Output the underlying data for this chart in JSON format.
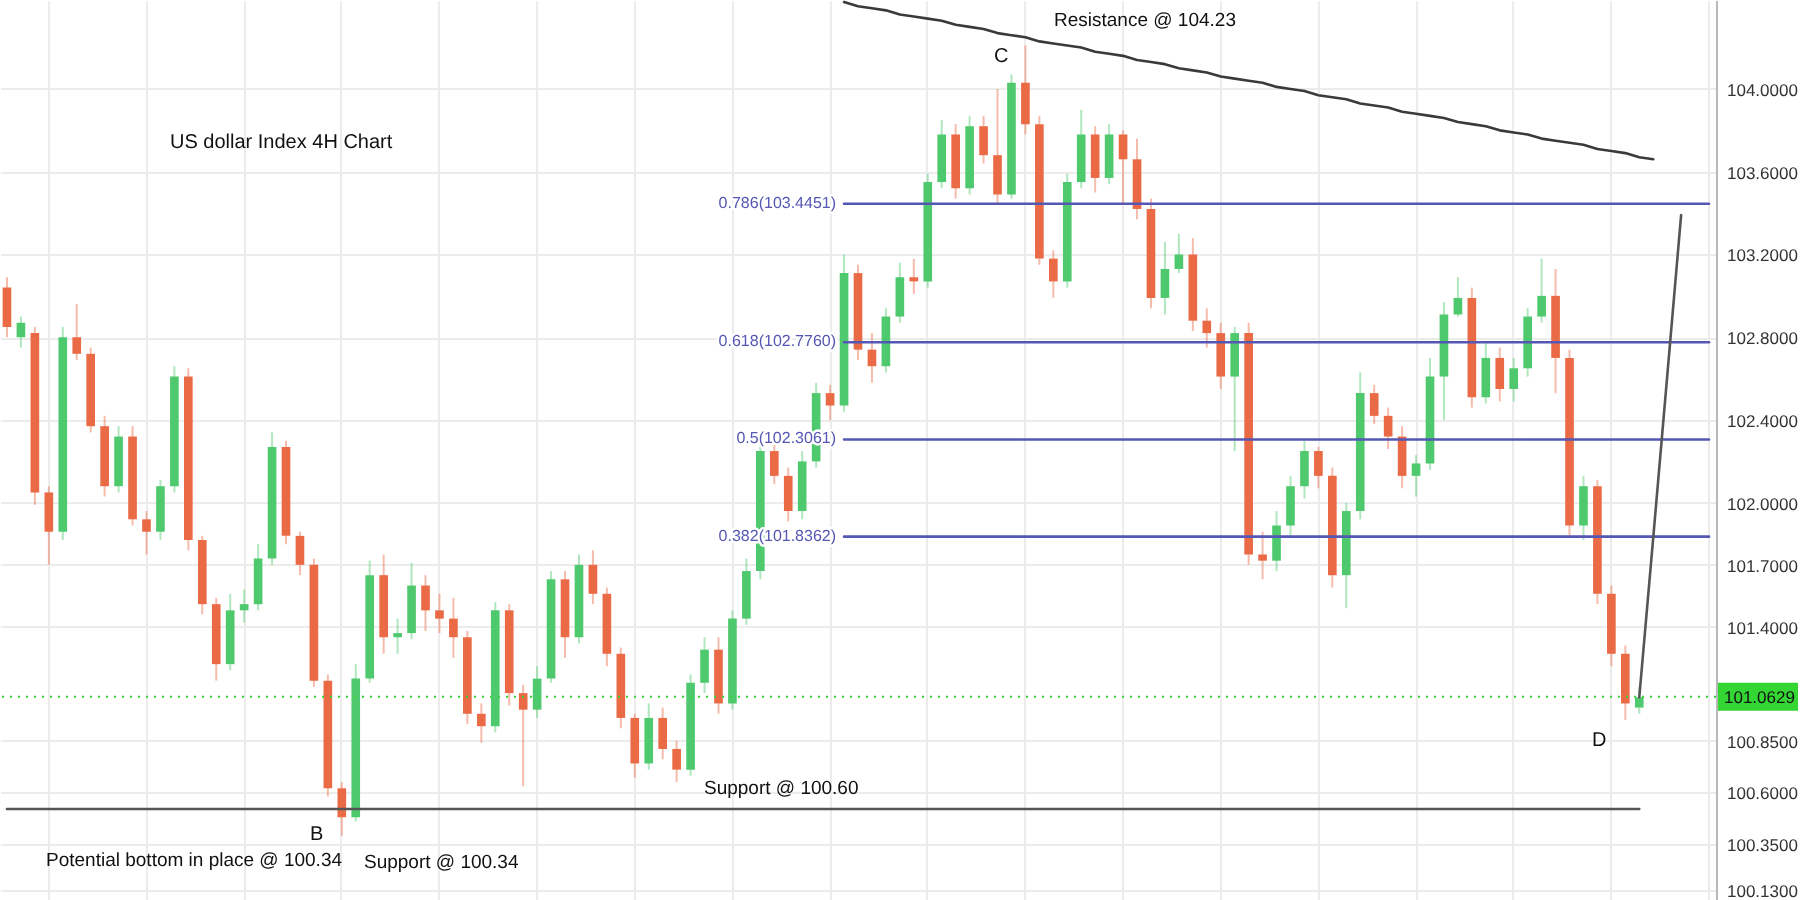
{
  "chart_data": {
    "type": "candlestick",
    "title": "US dollar Index 4H Chart",
    "categories": [
      null,
      null,
      null,
      null,
      null,
      null,
      null,
      null,
      null,
      null,
      null,
      null,
      null,
      null,
      null,
      null,
      null,
      null,
      null,
      null,
      null,
      null,
      null,
      null,
      null,
      null,
      null,
      null,
      null,
      null,
      null,
      null,
      null,
      null,
      null,
      null,
      null,
      null,
      null,
      null,
      null,
      null,
      null,
      null,
      null,
      null,
      null,
      null,
      null,
      null,
      null,
      null,
      null,
      null,
      null,
      null,
      null,
      null,
      null,
      null,
      null,
      null,
      null,
      null,
      null,
      null,
      null,
      null,
      null,
      null,
      null,
      null,
      null,
      null,
      null,
      null,
      null,
      null,
      null,
      null,
      null,
      null,
      null,
      null,
      null,
      null,
      null,
      null,
      null,
      null,
      null,
      null,
      null,
      null,
      null,
      null,
      null,
      null,
      null,
      null,
      null,
      null,
      null,
      null,
      null,
      null,
      null,
      null,
      null,
      null,
      null,
      null,
      null,
      null,
      null,
      null,
      null,
      null,
      null,
      null,
      null,
      null,
      null
    ],
    "ohlc": [
      [
        103.04,
        103.09,
        102.8,
        102.85
      ],
      [
        102.8,
        102.9,
        102.75,
        102.87
      ],
      [
        102.82,
        102.85,
        101.99,
        102.05
      ],
      [
        102.05,
        102.08,
        101.7,
        101.86
      ],
      [
        101.86,
        102.85,
        101.82,
        102.8
      ],
      [
        102.8,
        102.96,
        102.69,
        102.72
      ],
      [
        102.72,
        102.75,
        102.34,
        102.37
      ],
      [
        102.37,
        102.42,
        102.03,
        102.08
      ],
      [
        102.08,
        102.37,
        102.05,
        102.32
      ],
      [
        102.32,
        102.37,
        101.89,
        101.92
      ],
      [
        101.92,
        101.96,
        101.75,
        101.86
      ],
      [
        101.86,
        102.11,
        101.82,
        102.08
      ],
      [
        102.08,
        102.66,
        102.05,
        102.61
      ],
      [
        102.61,
        102.65,
        101.77,
        101.82
      ],
      [
        101.82,
        101.84,
        101.46,
        101.51
      ],
      [
        101.51,
        101.54,
        101.14,
        101.22
      ],
      [
        101.22,
        101.56,
        101.19,
        101.48
      ],
      [
        101.48,
        101.58,
        101.42,
        101.51
      ],
      [
        101.51,
        101.8,
        101.48,
        101.73
      ],
      [
        101.73,
        102.34,
        101.7,
        102.27
      ],
      [
        102.27,
        102.3,
        101.8,
        101.84
      ],
      [
        101.84,
        101.86,
        101.65,
        101.7
      ],
      [
        101.7,
        101.73,
        101.11,
        101.14
      ],
      [
        101.14,
        101.17,
        100.58,
        100.62
      ],
      [
        100.62,
        100.65,
        100.39,
        100.48
      ],
      [
        100.48,
        101.22,
        100.46,
        101.15
      ],
      [
        101.15,
        101.72,
        101.13,
        101.65
      ],
      [
        101.65,
        101.75,
        101.27,
        101.35
      ],
      [
        101.35,
        101.44,
        101.27,
        101.37
      ],
      [
        101.37,
        101.71,
        101.34,
        101.6
      ],
      [
        101.6,
        101.65,
        101.38,
        101.48
      ],
      [
        101.48,
        101.56,
        101.37,
        101.44
      ],
      [
        101.44,
        101.54,
        101.25,
        101.35
      ],
      [
        101.35,
        101.38,
        100.93,
        100.98
      ],
      [
        100.98,
        101.03,
        100.84,
        100.92
      ],
      [
        100.92,
        101.52,
        100.89,
        101.48
      ],
      [
        101.48,
        101.51,
        101.02,
        101.08
      ],
      [
        101.08,
        101.12,
        100.63,
        101.0
      ],
      [
        101.0,
        101.21,
        100.96,
        101.15
      ],
      [
        101.15,
        101.67,
        101.13,
        101.63
      ],
      [
        101.63,
        101.67,
        101.25,
        101.35
      ],
      [
        101.35,
        101.75,
        101.32,
        101.7
      ],
      [
        101.7,
        101.77,
        101.51,
        101.56
      ],
      [
        101.56,
        101.59,
        101.21,
        101.27
      ],
      [
        101.27,
        101.3,
        100.91,
        100.96
      ],
      [
        100.96,
        100.98,
        100.67,
        100.74
      ],
      [
        100.74,
        101.03,
        100.71,
        100.96
      ],
      [
        100.96,
        101.01,
        100.76,
        100.81
      ],
      [
        100.81,
        100.85,
        100.65,
        100.71
      ],
      [
        100.71,
        101.17,
        100.68,
        101.13
      ],
      [
        101.13,
        101.35,
        101.08,
        101.29
      ],
      [
        101.29,
        101.35,
        100.98,
        101.03
      ],
      [
        101.03,
        101.48,
        101.0,
        101.44
      ],
      [
        101.44,
        101.73,
        101.41,
        101.67
      ],
      [
        101.67,
        102.3,
        101.63,
        102.25
      ],
      [
        102.25,
        102.3,
        102.09,
        102.13
      ],
      [
        102.13,
        102.17,
        101.91,
        101.96
      ],
      [
        101.96,
        102.25,
        101.92,
        102.2
      ],
      [
        102.2,
        102.58,
        102.17,
        102.53
      ],
      [
        102.53,
        102.57,
        102.4,
        102.47
      ],
      [
        102.47,
        103.2,
        102.44,
        103.11
      ],
      [
        103.11,
        103.15,
        102.69,
        102.74
      ],
      [
        102.74,
        102.82,
        102.58,
        102.66
      ],
      [
        102.66,
        102.94,
        102.63,
        102.9
      ],
      [
        102.9,
        103.16,
        102.87,
        103.09
      ],
      [
        103.09,
        103.18,
        103.01,
        103.07
      ],
      [
        103.07,
        103.59,
        103.04,
        103.55
      ],
      [
        103.55,
        103.85,
        103.52,
        103.78
      ],
      [
        103.78,
        103.83,
        103.47,
        103.52
      ],
      [
        103.52,
        103.87,
        103.49,
        103.82
      ],
      [
        103.82,
        103.87,
        103.64,
        103.68
      ],
      [
        103.68,
        104.0,
        103.45,
        103.49
      ],
      [
        103.49,
        104.07,
        103.47,
        104.03
      ],
      [
        104.03,
        104.21,
        103.78,
        103.83
      ],
      [
        103.83,
        103.87,
        103.15,
        103.18
      ],
      [
        103.18,
        103.22,
        102.99,
        103.07
      ],
      [
        103.07,
        103.59,
        103.04,
        103.55
      ],
      [
        103.55,
        103.9,
        103.52,
        103.78
      ],
      [
        103.78,
        103.82,
        103.5,
        103.57
      ],
      [
        103.57,
        103.83,
        103.54,
        103.78
      ],
      [
        103.78,
        103.8,
        103.45,
        103.66
      ],
      [
        103.66,
        103.76,
        103.37,
        103.42
      ],
      [
        103.42,
        103.47,
        102.94,
        102.99
      ],
      [
        102.99,
        103.26,
        102.91,
        103.13
      ],
      [
        103.13,
        103.3,
        103.11,
        103.2
      ],
      [
        103.2,
        103.28,
        102.83,
        102.88
      ],
      [
        102.88,
        102.94,
        102.75,
        102.82
      ],
      [
        102.82,
        102.87,
        102.55,
        102.61
      ],
      [
        102.61,
        102.85,
        102.25,
        102.82
      ],
      [
        102.82,
        102.87,
        101.7,
        101.75
      ],
      [
        101.75,
        101.86,
        101.63,
        101.72
      ],
      [
        101.72,
        101.96,
        101.67,
        101.89
      ],
      [
        101.89,
        102.13,
        101.84,
        102.08
      ],
      [
        102.08,
        102.3,
        102.02,
        102.25
      ],
      [
        102.25,
        102.27,
        102.07,
        102.13
      ],
      [
        102.13,
        102.17,
        101.59,
        101.65
      ],
      [
        101.65,
        102.0,
        101.49,
        101.96
      ],
      [
        101.96,
        102.63,
        101.92,
        102.53
      ],
      [
        102.53,
        102.57,
        102.38,
        102.42
      ],
      [
        102.42,
        102.46,
        102.26,
        102.32
      ],
      [
        102.32,
        102.37,
        102.07,
        102.13
      ],
      [
        102.13,
        102.23,
        102.03,
        102.19
      ],
      [
        102.19,
        102.7,
        102.16,
        102.61
      ],
      [
        102.61,
        102.97,
        102.4,
        102.91
      ],
      [
        102.91,
        103.09,
        102.9,
        102.99
      ],
      [
        102.99,
        103.04,
        102.46,
        102.51
      ],
      [
        102.51,
        102.78,
        102.48,
        102.7
      ],
      [
        102.7,
        102.75,
        102.49,
        102.55
      ],
      [
        102.55,
        102.7,
        102.49,
        102.65
      ],
      [
        102.65,
        102.94,
        102.61,
        102.9
      ],
      [
        102.9,
        103.18,
        102.87,
        103.0
      ],
      [
        103.0,
        103.13,
        102.53,
        102.7
      ],
      [
        102.7,
        102.74,
        101.84,
        101.89
      ],
      [
        101.89,
        102.13,
        101.82,
        102.08
      ],
      [
        102.08,
        102.11,
        101.51,
        101.56
      ],
      [
        101.56,
        101.6,
        101.21,
        101.27
      ],
      [
        101.27,
        101.31,
        100.95,
        101.03
      ],
      [
        101.01,
        101.11,
        100.98,
        101.06
      ],
      null,
      null,
      null,
      null,
      null
    ],
    "colors": [
      "#ea6a45",
      "#4fc96e",
      "#ea6a45",
      "#ea6a45",
      "#4fc96e",
      "#ea6a45",
      "#ea6a45",
      "#ea6a45",
      "#4fc96e",
      "#ea6a45",
      "#ea6a45",
      "#4fc96e",
      "#4fc96e",
      "#ea6a45",
      "#ea6a45",
      "#ea6a45",
      "#4fc96e",
      "#4fc96e",
      "#4fc96e",
      "#4fc96e",
      "#ea6a45",
      "#ea6a45",
      "#ea6a45",
      "#ea6a45",
      "#ea6a45",
      "#4fc96e",
      "#4fc96e",
      "#ea6a45",
      "#4fc96e",
      "#4fc96e",
      "#ea6a45",
      "#ea6a45",
      "#ea6a45",
      "#ea6a45",
      "#ea6a45",
      "#4fc96e",
      "#ea6a45",
      "#ea6a45",
      "#4fc96e",
      "#4fc96e",
      "#ea6a45",
      "#4fc96e",
      "#ea6a45",
      "#ea6a45",
      "#ea6a45",
      "#ea6a45",
      "#4fc96e",
      "#ea6a45",
      "#ea6a45",
      "#4fc96e",
      "#4fc96e",
      "#ea6a45",
      "#4fc96e",
      "#4fc96e",
      "#4fc96e",
      "#ea6a45",
      "#ea6a45",
      "#4fc96e",
      "#4fc96e",
      "#ea6a45",
      "#4fc96e",
      "#ea6a45",
      "#ea6a45",
      "#4fc96e",
      "#4fc96e",
      "#ea6a45",
      "#4fc96e",
      "#4fc96e",
      "#ea6a45",
      "#4fc96e",
      "#ea6a45",
      "#ea6a45",
      "#4fc96e",
      "#ea6a45",
      "#ea6a45",
      "#ea6a45",
      "#4fc96e",
      "#4fc96e",
      "#ea6a45",
      "#4fc96e",
      "#ea6a45",
      "#ea6a45",
      "#ea6a45",
      "#4fc96e",
      "#4fc96e",
      "#ea6a45",
      "#ea6a45",
      "#ea6a45",
      "#4fc96e",
      "#ea6a45",
      "#ea6a45",
      "#4fc96e",
      "#4fc96e",
      "#4fc96e",
      "#ea6a45",
      "#ea6a45",
      "#4fc96e",
      "#4fc96e",
      "#ea6a45",
      "#ea6a45",
      "#ea6a45",
      "#4fc96e",
      "#4fc96e",
      "#4fc96e",
      "#4fc96e",
      "#ea6a45",
      "#4fc96e",
      "#ea6a45",
      "#4fc96e",
      "#4fc96e",
      "#4fc96e",
      "#ea6a45",
      "#ea6a45",
      "#4fc96e",
      "#ea6a45",
      "#ea6a45",
      "#ea6a45",
      "#4fc96e",
      null,
      null,
      null,
      null,
      null
    ],
    "series": [
      {
        "type": "line",
        "name": "0.786(103.4451)",
        "color": "#5457b3",
        "values": [
          null,
          null,
          null,
          null,
          null,
          null,
          null,
          null,
          null,
          null,
          null,
          null,
          null,
          null,
          null,
          null,
          null,
          null,
          null,
          null,
          null,
          null,
          null,
          null,
          null,
          null,
          null,
          null,
          null,
          null,
          null,
          null,
          null,
          null,
          null,
          null,
          null,
          null,
          null,
          null,
          null,
          null,
          null,
          null,
          null,
          null,
          null,
          null,
          null,
          null,
          null,
          null,
          null,
          null,
          null,
          null,
          null,
          null,
          null,
          null,
          103.4451,
          103.4451,
          103.4451,
          103.4451,
          103.4451,
          103.4451,
          103.4451,
          103.4451,
          103.4451,
          103.4451,
          103.4451,
          103.4451,
          103.4451,
          103.4451,
          103.4451,
          103.4451,
          103.4451,
          103.4451,
          103.4451,
          103.4451,
          103.4451,
          103.4451,
          103.4451,
          103.4451,
          103.4451,
          103.4451,
          103.4451,
          103.4451,
          103.4451,
          103.4451,
          103.4451,
          103.4451,
          103.4451,
          103.4451,
          103.4451,
          103.4451,
          103.4451,
          103.4451,
          103.4451,
          103.4451,
          103.4451,
          103.4451,
          103.4451,
          103.4451,
          103.4451,
          103.4451,
          103.4451,
          103.4451,
          103.4451,
          103.4451,
          103.4451,
          103.4451,
          103.4451,
          103.4451,
          103.4451,
          103.4451,
          103.4451,
          103.4451,
          103.4451,
          103.4451,
          103.4451,
          103.4451,
          103.4451
        ]
      },
      {
        "type": "line",
        "name": "0.618(102.7760)",
        "color": "#5457b3",
        "values": [
          null,
          null,
          null,
          null,
          null,
          null,
          null,
          null,
          null,
          null,
          null,
          null,
          null,
          null,
          null,
          null,
          null,
          null,
          null,
          null,
          null,
          null,
          null,
          null,
          null,
          null,
          null,
          null,
          null,
          null,
          null,
          null,
          null,
          null,
          null,
          null,
          null,
          null,
          null,
          null,
          null,
          null,
          null,
          null,
          null,
          null,
          null,
          null,
          null,
          null,
          null,
          null,
          null,
          null,
          null,
          null,
          null,
          null,
          null,
          null,
          102.776,
          102.776,
          102.776,
          102.776,
          102.776,
          102.776,
          102.776,
          102.776,
          102.776,
          102.776,
          102.776,
          102.776,
          102.776,
          102.776,
          102.776,
          102.776,
          102.776,
          102.776,
          102.776,
          102.776,
          102.776,
          102.776,
          102.776,
          102.776,
          102.776,
          102.776,
          102.776,
          102.776,
          102.776,
          102.776,
          102.776,
          102.776,
          102.776,
          102.776,
          102.776,
          102.776,
          102.776,
          102.776,
          102.776,
          102.776,
          102.776,
          102.776,
          102.776,
          102.776,
          102.776,
          102.776,
          102.776,
          102.776,
          102.776,
          102.776,
          102.776,
          102.776,
          102.776,
          102.776,
          102.776,
          102.776,
          102.776,
          102.776,
          102.776,
          102.776,
          102.776,
          102.776,
          102.776
        ]
      },
      {
        "type": "line",
        "name": "0.5(102.3061)",
        "color": "#5457b3",
        "values": [
          null,
          null,
          null,
          null,
          null,
          null,
          null,
          null,
          null,
          null,
          null,
          null,
          null,
          null,
          null,
          null,
          null,
          null,
          null,
          null,
          null,
          null,
          null,
          null,
          null,
          null,
          null,
          null,
          null,
          null,
          null,
          null,
          null,
          null,
          null,
          null,
          null,
          null,
          null,
          null,
          null,
          null,
          null,
          null,
          null,
          null,
          null,
          null,
          null,
          null,
          null,
          null,
          null,
          null,
          null,
          null,
          null,
          null,
          null,
          null,
          102.3061,
          102.3061,
          102.3061,
          102.3061,
          102.3061,
          102.3061,
          102.3061,
          102.3061,
          102.3061,
          102.3061,
          102.3061,
          102.3061,
          102.3061,
          102.3061,
          102.3061,
          102.3061,
          102.3061,
          102.3061,
          102.3061,
          102.3061,
          102.3061,
          102.3061,
          102.3061,
          102.3061,
          102.3061,
          102.3061,
          102.3061,
          102.3061,
          102.3061,
          102.3061,
          102.3061,
          102.3061,
          102.3061,
          102.3061,
          102.3061,
          102.3061,
          102.3061,
          102.3061,
          102.3061,
          102.3061,
          102.3061,
          102.3061,
          102.3061,
          102.3061,
          102.3061,
          102.3061,
          102.3061,
          102.3061,
          102.3061,
          102.3061,
          102.3061,
          102.3061,
          102.3061,
          102.3061,
          102.3061,
          102.3061,
          102.3061,
          102.3061,
          102.3061,
          102.3061,
          102.3061,
          102.3061,
          102.3061
        ]
      },
      {
        "type": "line",
        "name": "0.382(101.8362)",
        "color": "#5457b3",
        "values": [
          null,
          null,
          null,
          null,
          null,
          null,
          null,
          null,
          null,
          null,
          null,
          null,
          null,
          null,
          null,
          null,
          null,
          null,
          null,
          null,
          null,
          null,
          null,
          null,
          null,
          null,
          null,
          null,
          null,
          null,
          null,
          null,
          null,
          null,
          null,
          null,
          null,
          null,
          null,
          null,
          null,
          null,
          null,
          null,
          null,
          null,
          null,
          null,
          null,
          null,
          null,
          null,
          null,
          null,
          null,
          null,
          null,
          null,
          null,
          null,
          101.8362,
          101.8362,
          101.8362,
          101.8362,
          101.8362,
          101.8362,
          101.8362,
          101.8362,
          101.8362,
          101.8362,
          101.8362,
          101.8362,
          101.8362,
          101.8362,
          101.8362,
          101.8362,
          101.8362,
          101.8362,
          101.8362,
          101.8362,
          101.8362,
          101.8362,
          101.8362,
          101.8362,
          101.8362,
          101.8362,
          101.8362,
          101.8362,
          101.8362,
          101.8362,
          101.8362,
          101.8362,
          101.8362,
          101.8362,
          101.8362,
          101.8362,
          101.8362,
          101.8362,
          101.8362,
          101.8362,
          101.8362,
          101.8362,
          101.8362,
          101.8362,
          101.8362,
          101.8362,
          101.8362,
          101.8362,
          101.8362,
          101.8362,
          101.8362,
          101.8362,
          101.8362,
          101.8362,
          101.8362,
          101.8362,
          101.8362,
          101.8362,
          101.8362,
          101.8362,
          101.8362,
          101.8362,
          101.8362
        ]
      },
      {
        "type": "line",
        "color": "#3a3a3a",
        "values": [
          null,
          null,
          null,
          null,
          null,
          null,
          null,
          null,
          null,
          null,
          null,
          null,
          null,
          null,
          null,
          null,
          null,
          null,
          null,
          null,
          null,
          null,
          null,
          null,
          null,
          null,
          null,
          null,
          null,
          null,
          null,
          null,
          null,
          null,
          null,
          null,
          null,
          null,
          null,
          null,
          null,
          null,
          null,
          null,
          null,
          null,
          null,
          null,
          null,
          null,
          null,
          null,
          null,
          null,
          null,
          null,
          null,
          null,
          null,
          null,
          104.42,
          104.4,
          104.39,
          104.38,
          104.36,
          104.35,
          104.34,
          104.33,
          104.31,
          104.3,
          104.29,
          104.27,
          104.26,
          104.25,
          104.23,
          104.22,
          104.21,
          104.2,
          104.18,
          104.17,
          104.16,
          104.14,
          104.13,
          104.12,
          104.1,
          104.09,
          104.08,
          104.06,
          104.05,
          104.04,
          104.03,
          104.01,
          104.0,
          103.99,
          103.97,
          103.96,
          103.95,
          103.93,
          103.92,
          103.91,
          103.89,
          103.88,
          103.87,
          103.86,
          103.84,
          103.83,
          103.82,
          103.8,
          103.79,
          103.78,
          103.76,
          103.75,
          103.74,
          103.73,
          103.71,
          103.7,
          103.69,
          103.67,
          103.66,
          null,
          null,
          null,
          null
        ]
      },
      {
        "type": "line",
        "color": "#555555",
        "values": [
          100.52,
          100.52,
          100.52,
          100.52,
          100.52,
          100.52,
          100.52,
          100.52,
          100.52,
          100.52,
          100.52,
          100.52,
          100.52,
          100.52,
          100.52,
          100.52,
          100.52,
          100.52,
          100.52,
          100.52,
          100.52,
          100.52,
          100.52,
          100.52,
          100.52,
          100.52,
          100.52,
          100.52,
          100.52,
          100.52,
          100.52,
          100.52,
          100.52,
          100.52,
          100.52,
          100.52,
          100.52,
          100.52,
          100.52,
          100.52,
          100.52,
          100.52,
          100.52,
          100.52,
          100.52,
          100.52,
          100.52,
          100.52,
          100.52,
          100.52,
          100.52,
          100.52,
          100.52,
          100.52,
          100.52,
          100.52,
          100.52,
          100.52,
          100.52,
          100.52,
          100.52,
          100.52,
          100.52,
          100.52,
          100.52,
          100.52,
          100.52,
          100.52,
          100.52,
          100.52,
          100.52,
          100.52,
          100.52,
          100.52,
          100.52,
          100.52,
          100.52,
          100.52,
          100.52,
          100.52,
          100.52,
          100.52,
          100.52,
          100.52,
          100.52,
          100.52,
          100.52,
          100.52,
          100.52,
          100.52,
          100.52,
          100.52,
          100.52,
          100.52,
          100.52,
          100.52,
          100.52,
          100.52,
          100.52,
          100.52,
          100.52,
          100.52,
          100.52,
          100.52,
          100.52,
          100.52,
          100.52,
          100.52,
          100.52,
          100.52,
          100.52,
          100.52,
          100.52,
          100.52,
          100.52,
          100.52,
          100.52,
          100.52,
          null,
          null,
          null,
          null,
          null
        ]
      },
      {
        "type": "line",
        "color": "#555555",
        "values": [
          null,
          null,
          null,
          null,
          null,
          null,
          null,
          null,
          null,
          null,
          null,
          null,
          null,
          null,
          null,
          null,
          null,
          null,
          null,
          null,
          null,
          null,
          null,
          null,
          null,
          null,
          null,
          null,
          null,
          null,
          null,
          null,
          null,
          null,
          null,
          null,
          null,
          null,
          null,
          null,
          null,
          null,
          null,
          null,
          null,
          null,
          null,
          null,
          null,
          null,
          null,
          null,
          null,
          null,
          null,
          null,
          null,
          null,
          null,
          null,
          null,
          null,
          null,
          null,
          null,
          null,
          null,
          null,
          null,
          null,
          null,
          null,
          null,
          null,
          null,
          null,
          null,
          null,
          null,
          null,
          null,
          null,
          null,
          null,
          null,
          null,
          null,
          null,
          null,
          null,
          null,
          null,
          null,
          null,
          null,
          null,
          null,
          null,
          null,
          null,
          null,
          null,
          null,
          null,
          null,
          null,
          null,
          null,
          null,
          null,
          null,
          null,
          null,
          null,
          null,
          null,
          null,
          101.06,
          101.83,
          102.61,
          103.39,
          null,
          null
        ]
      }
    ],
    "ref_lines": [
      {
        "axis": "y",
        "value": 101.0629,
        "label": "101.0629",
        "color": "#33d633",
        "line_style": "dotted"
      }
    ],
    "annotations": [
      "C",
      "Resistance @ 104.23",
      "B",
      "Potential bottom in place @ 100.34",
      "Support @ 100.34",
      "Support @ 100.60",
      "D"
    ],
    "ylim": [
      100.08,
      104.43
    ],
    "yticks": [
      {
        "value": 104,
        "label": "104.0000"
      },
      {
        "value": 103.6,
        "label": "103.6000"
      },
      {
        "value": 103.2,
        "label": "103.2000"
      },
      {
        "value": 102.8,
        "label": "102.8000"
      },
      {
        "value": 102.4,
        "label": "102.4000"
      },
      {
        "value": 102,
        "label": "102.0000"
      },
      {
        "value": 101.7,
        "label": "101.7000"
      },
      {
        "value": 101.4,
        "label": "101.4000"
      },
      {
        "value": 100.85,
        "label": "100.8500"
      },
      {
        "value": 100.6,
        "label": "100.6000"
      },
      {
        "value": 100.35,
        "label": "100.3500"
      },
      {
        "value": 100.13,
        "label": "100.1300"
      }
    ],
    "grid": true,
    "tick_labels": "y"
  }
}
